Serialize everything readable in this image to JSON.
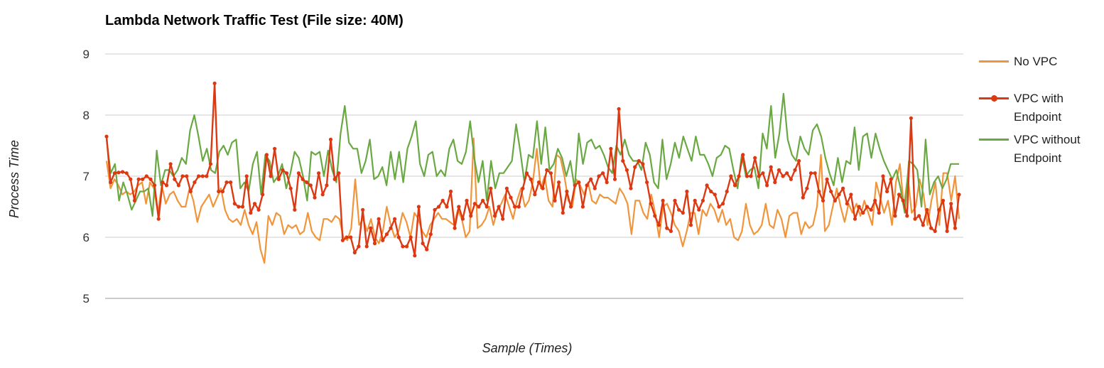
{
  "chart_data": {
    "type": "line",
    "title": "Lambda Network Traffic Test (File size: 40M)",
    "xlabel": "Sample (Times)",
    "ylabel": "Process Time",
    "ylim": [
      5,
      9
    ],
    "yticks": [
      "9",
      "8",
      "7",
      "6",
      "5"
    ],
    "grid": true,
    "legend_position": "right",
    "series": [
      {
        "name": "No VPC",
        "color": "#f0953b",
        "marker": false,
        "values": [
          7.25,
          6.8,
          6.95,
          6.85,
          6.7,
          6.75,
          6.7,
          6.75,
          6.85,
          6.9,
          6.55,
          6.9,
          6.8,
          6.4,
          6.85,
          6.55,
          6.7,
          6.75,
          6.6,
          6.5,
          6.5,
          6.8,
          6.6,
          6.25,
          6.5,
          6.6,
          6.7,
          6.5,
          6.65,
          6.8,
          6.45,
          6.3,
          6.25,
          6.3,
          6.2,
          6.45,
          6.2,
          6.05,
          6.25,
          5.8,
          5.58,
          6.35,
          6.2,
          6.4,
          6.35,
          6.05,
          6.2,
          6.15,
          6.2,
          6.05,
          6.1,
          6.4,
          6.1,
          6.0,
          5.95,
          6.3,
          6.3,
          6.25,
          6.35,
          6.3,
          6.0,
          5.95,
          6.15,
          6.95,
          6.2,
          6.3,
          6.1,
          6.3,
          6.0,
          5.9,
          6.1,
          6.5,
          6.2,
          6.0,
          6.1,
          6.4,
          6.25,
          6.0,
          6.4,
          6.3,
          6.1,
          6.0,
          6.2,
          6.3,
          6.4,
          6.3,
          6.3,
          6.25,
          6.2,
          6.45,
          6.3,
          6.0,
          6.1,
          7.62,
          6.15,
          6.2,
          6.3,
          6.5,
          6.2,
          6.45,
          6.55,
          6.7,
          6.5,
          6.3,
          6.6,
          6.8,
          6.5,
          6.6,
          6.9,
          7.45,
          6.8,
          7.0,
          6.6,
          6.5,
          7.35,
          7.3,
          7.0,
          6.6,
          6.5,
          6.95,
          6.85,
          6.7,
          6.9,
          6.6,
          6.55,
          6.7,
          6.65,
          6.65,
          6.6,
          6.55,
          6.8,
          6.7,
          6.55,
          6.05,
          6.6,
          6.6,
          6.4,
          6.3,
          6.7,
          6.4,
          6.0,
          6.5,
          6.55,
          6.4,
          6.2,
          6.1,
          5.85,
          6.1,
          6.4,
          6.4,
          6.05,
          6.45,
          6.35,
          6.55,
          6.45,
          6.25,
          6.45,
          6.2,
          6.3,
          6.0,
          5.95,
          6.1,
          6.55,
          6.2,
          6.05,
          6.1,
          6.2,
          6.55,
          6.2,
          6.15,
          6.45,
          6.3,
          6.0,
          6.35,
          6.4,
          6.4,
          6.05,
          6.25,
          6.15,
          6.2,
          6.5,
          7.35,
          6.1,
          6.2,
          6.5,
          6.8,
          6.5,
          6.25,
          6.55,
          6.4,
          6.55,
          6.35,
          6.6,
          6.4,
          6.2,
          6.9,
          6.65,
          6.4,
          6.6,
          6.2,
          6.9,
          7.2,
          6.5,
          7.0,
          6.4,
          6.5,
          6.95,
          6.7,
          6.2,
          6.6,
          6.9,
          6.2,
          7.05,
          7.05,
          6.6,
          7.0,
          6.3
        ]
      },
      {
        "name": "VPC with Endpoint",
        "color": "#dc3912",
        "marker": true,
        "values": [
          7.65,
          6.9,
          7.05,
          7.06,
          7.07,
          7.05,
          6.95,
          6.6,
          6.95,
          6.95,
          7.0,
          6.95,
          6.85,
          6.3,
          6.9,
          6.85,
          7.2,
          6.95,
          6.85,
          7.0,
          7.0,
          6.75,
          6.9,
          7.0,
          7.0,
          7.0,
          7.2,
          8.52,
          6.75,
          6.75,
          6.9,
          6.9,
          6.55,
          6.5,
          6.5,
          7.0,
          6.4,
          6.55,
          6.45,
          6.7,
          7.35,
          7.0,
          7.45,
          6.95,
          7.1,
          7.05,
          6.8,
          6.45,
          7.05,
          6.95,
          6.9,
          6.85,
          6.65,
          7.05,
          6.7,
          6.85,
          7.6,
          6.95,
          7.05,
          5.95,
          6.0,
          6.0,
          5.75,
          5.85,
          6.45,
          5.85,
          6.15,
          5.9,
          6.3,
          5.95,
          6.05,
          6.15,
          6.3,
          6.0,
          5.85,
          5.85,
          6.0,
          5.7,
          6.5,
          5.9,
          5.8,
          6.05,
          6.45,
          6.5,
          6.6,
          6.5,
          6.75,
          6.15,
          6.5,
          6.3,
          6.6,
          6.35,
          6.55,
          6.5,
          6.6,
          6.5,
          6.8,
          6.35,
          6.5,
          6.3,
          6.8,
          6.65,
          6.5,
          6.5,
          6.8,
          7.05,
          6.95,
          6.7,
          6.9,
          6.8,
          7.1,
          7.05,
          6.6,
          6.9,
          6.4,
          6.75,
          6.5,
          6.85,
          6.9,
          6.5,
          6.85,
          6.95,
          6.8,
          7.0,
          7.05,
          6.9,
          7.45,
          6.95,
          8.1,
          7.25,
          7.1,
          6.8,
          7.15,
          7.25,
          7.2,
          6.9,
          6.55,
          6.35,
          6.2,
          6.6,
          6.15,
          6.1,
          6.6,
          6.45,
          6.4,
          6.75,
          6.2,
          6.6,
          6.45,
          6.6,
          6.85,
          6.75,
          6.7,
          6.5,
          6.55,
          6.75,
          7.0,
          6.85,
          7.0,
          7.35,
          7.0,
          7.0,
          7.3,
          7.0,
          7.05,
          6.85,
          7.15,
          6.9,
          7.1,
          7.0,
          7.05,
          6.95,
          7.1,
          7.25,
          6.65,
          6.8,
          7.05,
          7.05,
          6.75,
          6.6,
          6.95,
          6.75,
          6.6,
          6.7,
          6.8,
          6.55,
          6.7,
          6.3,
          6.5,
          6.4,
          6.5,
          6.45,
          6.6,
          6.4,
          7.0,
          6.75,
          6.95,
          6.35,
          6.7,
          6.6,
          6.35,
          7.95,
          6.3,
          6.35,
          6.2,
          6.45,
          6.15,
          6.1,
          6.45,
          6.6,
          6.1,
          6.55,
          6.15,
          6.7
        ]
      },
      {
        "name": "VPC without Endpoint",
        "color": "#6aa843",
        "marker": false,
        "values": [
          7.6,
          7.05,
          7.2,
          6.6,
          6.9,
          6.7,
          6.45,
          6.6,
          6.75,
          6.75,
          6.8,
          6.35,
          7.42,
          6.85,
          7.1,
          7.1,
          7.0,
          7.1,
          7.3,
          7.2,
          7.75,
          8.0,
          7.65,
          7.25,
          7.45,
          7.1,
          7.05,
          7.4,
          7.5,
          7.35,
          7.55,
          7.6,
          6.8,
          6.9,
          6.75,
          7.2,
          7.4,
          6.7,
          7.35,
          7.25,
          6.9,
          7.0,
          7.2,
          6.8,
          7.05,
          7.4,
          7.3,
          7.0,
          6.6,
          7.4,
          7.35,
          7.4,
          7.0,
          7.42,
          7.1,
          6.9,
          7.7,
          8.15,
          7.55,
          7.45,
          7.45,
          7.05,
          7.25,
          7.6,
          6.95,
          7.0,
          7.15,
          6.85,
          7.4,
          6.95,
          7.4,
          6.9,
          7.45,
          7.65,
          7.9,
          7.2,
          7.0,
          7.35,
          7.4,
          7.0,
          7.1,
          7.0,
          7.45,
          7.6,
          7.25,
          7.2,
          7.4,
          7.9,
          7.3,
          6.9,
          7.25,
          6.6,
          7.25,
          6.8,
          7.05,
          7.05,
          7.15,
          7.25,
          7.85,
          7.4,
          6.9,
          7.35,
          7.3,
          7.9,
          7.2,
          7.8,
          7.1,
          7.2,
          7.45,
          7.3,
          7.0,
          7.25,
          6.8,
          7.7,
          7.2,
          7.55,
          7.6,
          7.45,
          7.5,
          7.35,
          7.15,
          7.05,
          7.5,
          7.35,
          7.6,
          7.35,
          7.25,
          7.25,
          7.1,
          7.55,
          7.35,
          6.9,
          6.8,
          7.6,
          6.95,
          7.2,
          7.55,
          7.3,
          7.65,
          7.45,
          7.25,
          7.65,
          7.35,
          7.35,
          7.2,
          7.0,
          7.3,
          7.35,
          7.5,
          7.45,
          7.1,
          6.8,
          7.35,
          7.0,
          7.1,
          7.15,
          6.8,
          7.7,
          7.45,
          8.15,
          7.3,
          7.7,
          8.35,
          7.6,
          7.35,
          7.25,
          7.65,
          7.45,
          7.35,
          7.75,
          7.85,
          7.65,
          7.3,
          7.05,
          6.85,
          7.3,
          6.9,
          7.25,
          7.2,
          7.8,
          7.1,
          7.65,
          7.7,
          7.3,
          7.7,
          7.45,
          7.25,
          7.1,
          6.95,
          7.1,
          6.8,
          6.4,
          7.25,
          7.2,
          7.1,
          6.5,
          7.6,
          6.7,
          6.9,
          7.0,
          6.8,
          6.95,
          7.2,
          7.2,
          7.2
        ]
      }
    ]
  }
}
